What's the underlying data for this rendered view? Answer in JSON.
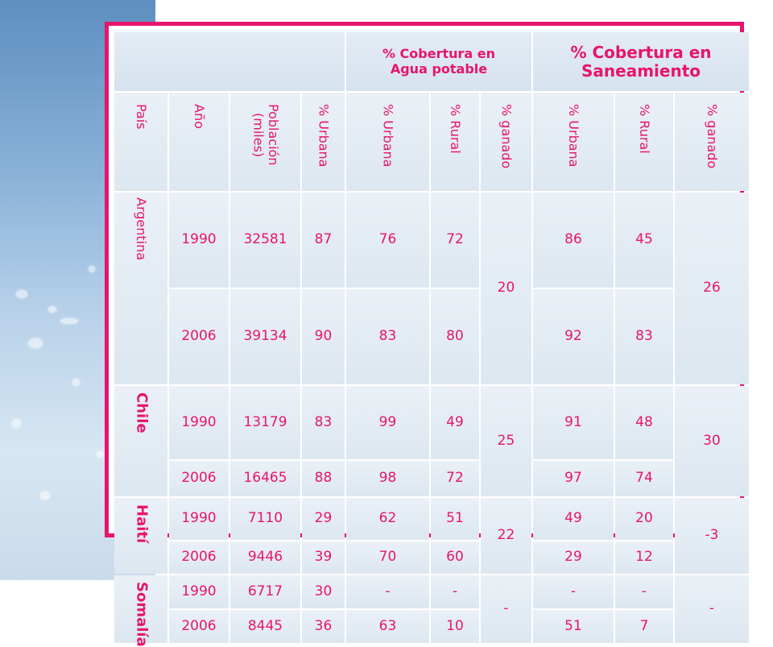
{
  "header": {
    "agua_title": "% Cobertura en\nAgua potable",
    "saneamiento_title": "% Cobertura en\nSaneamiento"
  },
  "columns": {
    "pais": "País",
    "anio": "Año",
    "poblacion": "Población\n(miles)",
    "urbana_pob": "% Urbana",
    "agua_urbana": "% Urbana",
    "agua_rural": "% Rural",
    "agua_ganado": "% ganado",
    "san_urbana": "% Urbana",
    "san_rural": "% Rural",
    "san_ganado": "% ganado"
  },
  "countries": [
    {
      "name": "Argentina",
      "rows": [
        {
          "year": "1990",
          "pop": "32581",
          "urb": "87",
          "agua_u": "76",
          "agua_r": "72",
          "san_u": "86",
          "san_r": "45"
        },
        {
          "year": "2006",
          "pop": "39134",
          "urb": "90",
          "agua_u": "83",
          "agua_r": "80",
          "san_u": "92",
          "san_r": "83"
        }
      ],
      "agua_ganado": "20",
      "san_ganado": "26"
    },
    {
      "name": "Chile",
      "rows": [
        {
          "year": "1990",
          "pop": "13179",
          "urb": "83",
          "agua_u": "99",
          "agua_r": "49",
          "san_u": "91",
          "san_r": "48"
        },
        {
          "year": "2006",
          "pop": "16465",
          "urb": "88",
          "agua_u": "98",
          "agua_r": "72",
          "san_u": "97",
          "san_r": "74"
        }
      ],
      "agua_ganado": "25",
      "san_ganado": "30"
    },
    {
      "name": "Haití",
      "rows": [
        {
          "year": "1990",
          "pop": "7110",
          "urb": "29",
          "agua_u": "62",
          "agua_r": "51",
          "san_u": "49",
          "san_r": "20"
        },
        {
          "year": "2006",
          "pop": "9446",
          "urb": "39",
          "agua_u": "70",
          "agua_r": "60",
          "san_u": "29",
          "san_r": "12"
        }
      ],
      "agua_ganado": "22",
      "san_ganado": "-3"
    },
    {
      "name": "Somalía",
      "rows": [
        {
          "year": "1990",
          "pop": "6717",
          "urb": "30",
          "agua_u": "-",
          "agua_r": "-",
          "san_u": "-",
          "san_r": "-"
        },
        {
          "year": "2006",
          "pop": "8445",
          "urb": "36",
          "agua_u": "63",
          "agua_r": "10",
          "san_u": "51",
          "san_r": "7"
        }
      ],
      "agua_ganado": "-",
      "san_ganado": "-"
    }
  ],
  "colors": {
    "accent": "#e8146c",
    "cell": "#e3ebf3"
  }
}
